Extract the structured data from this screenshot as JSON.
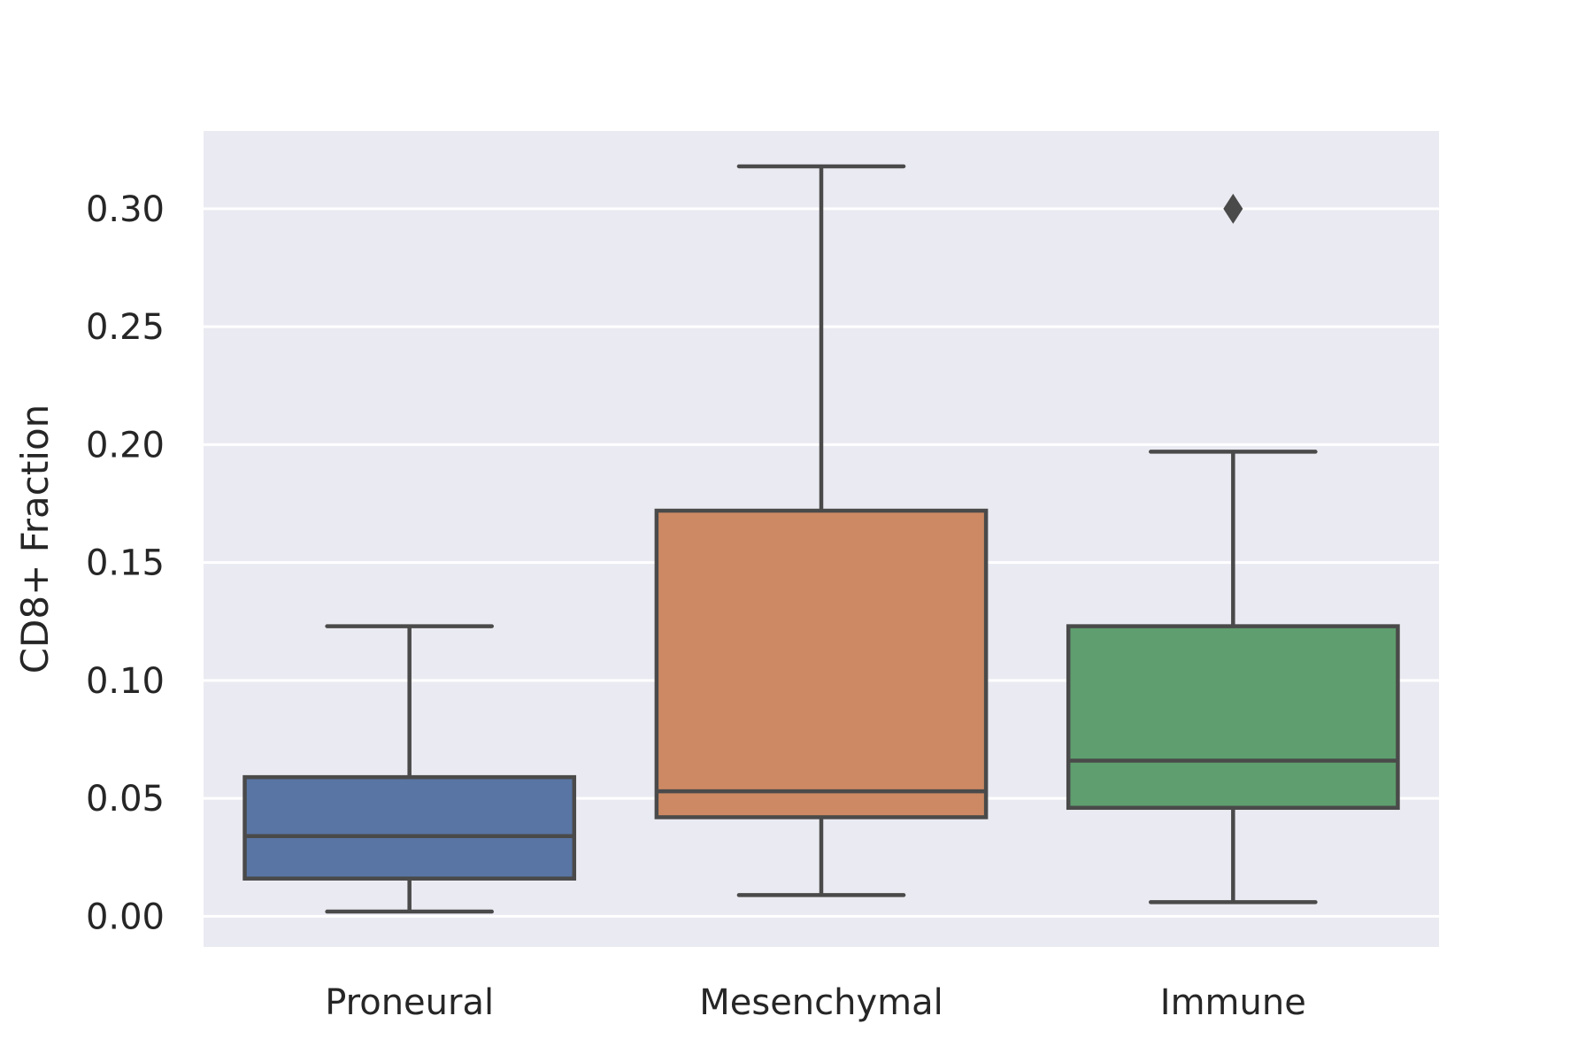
{
  "chart_data": {
    "type": "box",
    "title": "",
    "xlabel": "",
    "ylabel": "CD8+ Fraction",
    "ylim": [
      -0.013,
      0.333
    ],
    "yticks": [
      "0.00",
      "0.05",
      "0.10",
      "0.15",
      "0.20",
      "0.25",
      "0.30"
    ],
    "grid": true,
    "categories": [
      "Proneural",
      "Mesenchymal",
      "Immune"
    ],
    "boxes": [
      {
        "category": "Proneural",
        "whisker_low": 0.002,
        "q1": 0.016,
        "median": 0.034,
        "q3": 0.059,
        "whisker_high": 0.123,
        "outliers": [],
        "color": "#5975a4"
      },
      {
        "category": "Mesenchymal",
        "whisker_low": 0.009,
        "q1": 0.042,
        "median": 0.053,
        "q3": 0.172,
        "whisker_high": 0.318,
        "outliers": [],
        "color": "#cc8963"
      },
      {
        "category": "Immune",
        "whisker_low": 0.006,
        "q1": 0.046,
        "median": 0.066,
        "q3": 0.123,
        "whisker_high": 0.197,
        "outliers": [
          0.3
        ],
        "color": "#5f9e6e"
      }
    ],
    "colors": {
      "background": "#eaeaf2",
      "grid": "#ffffff",
      "line": "#4a4a4a",
      "text": "#262626"
    }
  }
}
